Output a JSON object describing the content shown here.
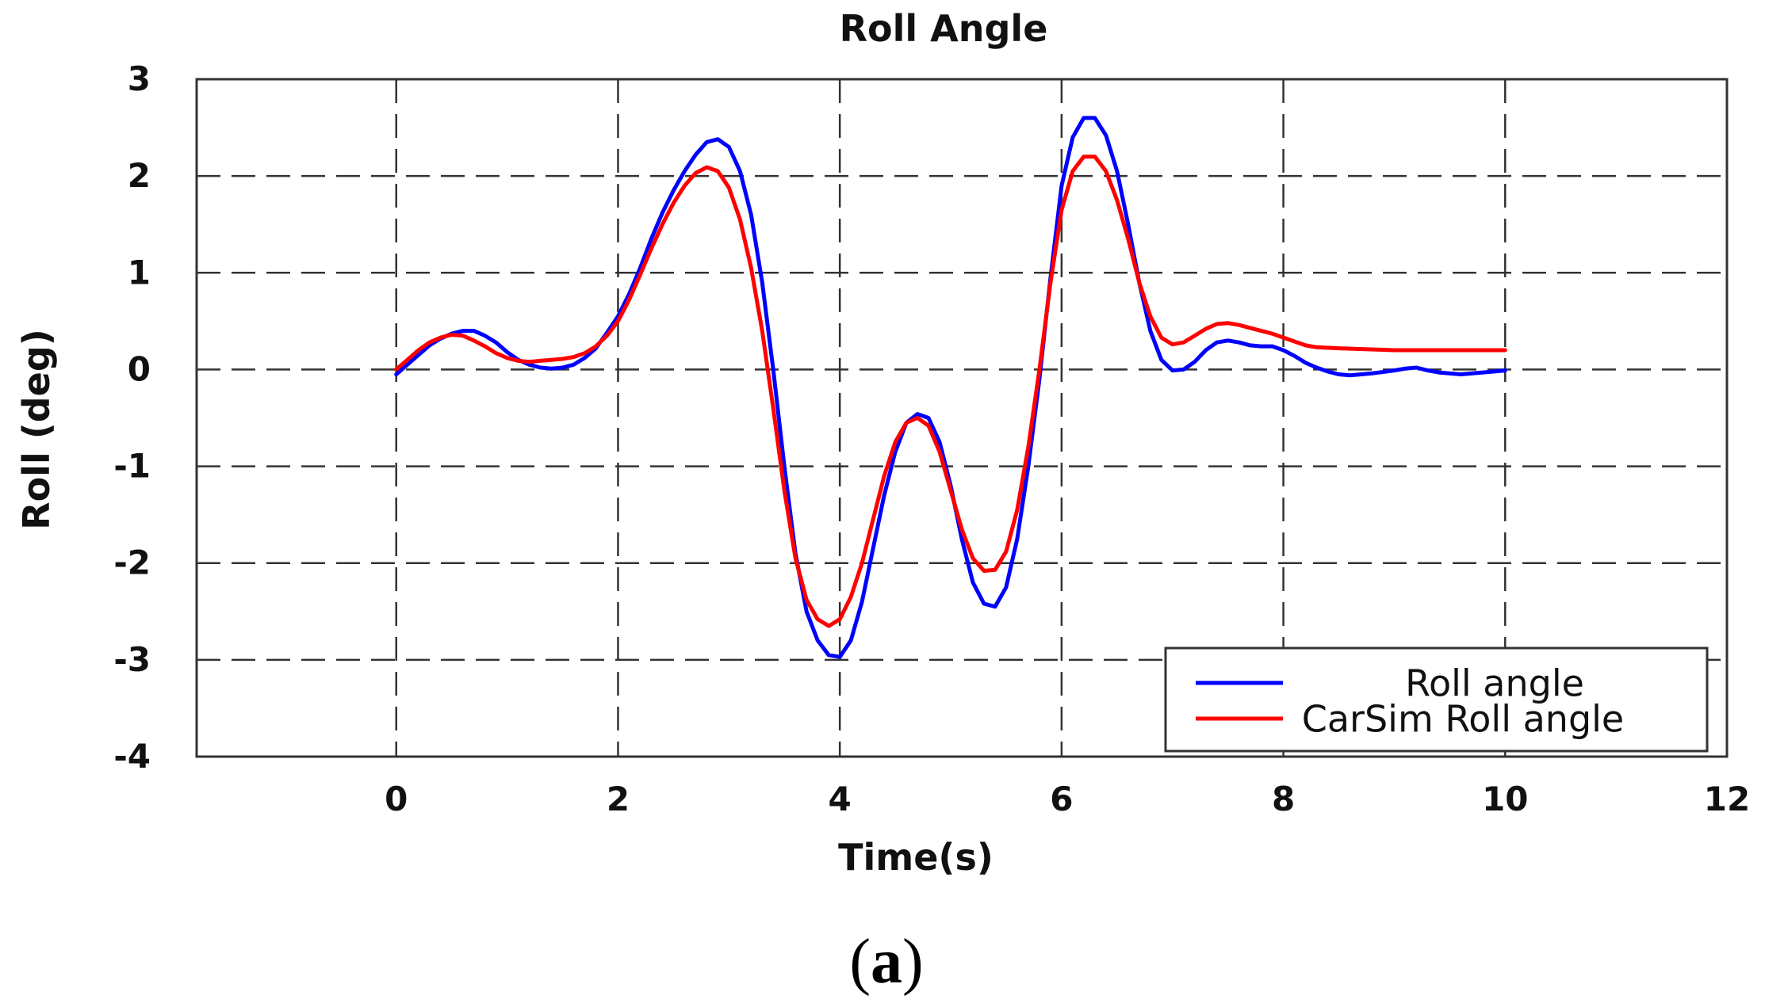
{
  "chart_data": {
    "type": "line",
    "title": "Roll Angle",
    "xlabel": "Time(s)",
    "ylabel": "Roll (deg)",
    "xlim": [
      -1.8,
      12
    ],
    "ylim": [
      -4,
      3
    ],
    "xticks": [
      0,
      2,
      4,
      6,
      8,
      10,
      12
    ],
    "yticks": [
      3,
      2,
      1,
      0,
      -1,
      -2,
      -3,
      -4
    ],
    "grid": true,
    "legend_position": "bottom-right",
    "caption": {
      "open": "(",
      "letter": "a",
      "close": ")"
    },
    "series": [
      {
        "name": "Roll angle",
        "color": "#0000ff",
        "points": [
          [
            0,
            -0.05
          ],
          [
            0.1,
            0.05
          ],
          [
            0.2,
            0.15
          ],
          [
            0.3,
            0.25
          ],
          [
            0.4,
            0.32
          ],
          [
            0.5,
            0.37
          ],
          [
            0.6,
            0.4
          ],
          [
            0.7,
            0.4
          ],
          [
            0.8,
            0.35
          ],
          [
            0.9,
            0.28
          ],
          [
            1.0,
            0.18
          ],
          [
            1.1,
            0.1
          ],
          [
            1.2,
            0.05
          ],
          [
            1.3,
            0.02
          ],
          [
            1.4,
            0.01
          ],
          [
            1.5,
            0.02
          ],
          [
            1.6,
            0.05
          ],
          [
            1.7,
            0.12
          ],
          [
            1.8,
            0.22
          ],
          [
            1.9,
            0.38
          ],
          [
            2.0,
            0.55
          ],
          [
            2.1,
            0.78
          ],
          [
            2.2,
            1.05
          ],
          [
            2.3,
            1.35
          ],
          [
            2.4,
            1.62
          ],
          [
            2.5,
            1.85
          ],
          [
            2.6,
            2.05
          ],
          [
            2.7,
            2.22
          ],
          [
            2.8,
            2.35
          ],
          [
            2.9,
            2.38
          ],
          [
            3.0,
            2.3
          ],
          [
            3.1,
            2.05
          ],
          [
            3.2,
            1.6
          ],
          [
            3.3,
            0.9
          ],
          [
            3.4,
            0.0
          ],
          [
            3.5,
            -1.0
          ],
          [
            3.6,
            -1.9
          ],
          [
            3.7,
            -2.5
          ],
          [
            3.8,
            -2.8
          ],
          [
            3.9,
            -2.95
          ],
          [
            4.0,
            -2.97
          ],
          [
            4.1,
            -2.8
          ],
          [
            4.2,
            -2.4
          ],
          [
            4.3,
            -1.85
          ],
          [
            4.4,
            -1.3
          ],
          [
            4.5,
            -0.85
          ],
          [
            4.6,
            -0.55
          ],
          [
            4.7,
            -0.46
          ],
          [
            4.8,
            -0.5
          ],
          [
            4.9,
            -0.75
          ],
          [
            5.0,
            -1.2
          ],
          [
            5.1,
            -1.75
          ],
          [
            5.2,
            -2.2
          ],
          [
            5.3,
            -2.42
          ],
          [
            5.4,
            -2.45
          ],
          [
            5.5,
            -2.25
          ],
          [
            5.6,
            -1.75
          ],
          [
            5.7,
            -1.0
          ],
          [
            5.8,
            -0.1
          ],
          [
            5.9,
            0.95
          ],
          [
            6.0,
            1.9
          ],
          [
            6.1,
            2.4
          ],
          [
            6.2,
            2.6
          ],
          [
            6.3,
            2.6
          ],
          [
            6.4,
            2.42
          ],
          [
            6.5,
            2.05
          ],
          [
            6.6,
            1.5
          ],
          [
            6.7,
            0.9
          ],
          [
            6.8,
            0.4
          ],
          [
            6.9,
            0.1
          ],
          [
            7.0,
            -0.01
          ],
          [
            7.1,
            0.0
          ],
          [
            7.2,
            0.08
          ],
          [
            7.3,
            0.2
          ],
          [
            7.4,
            0.28
          ],
          [
            7.5,
            0.3
          ],
          [
            7.6,
            0.28
          ],
          [
            7.7,
            0.25
          ],
          [
            7.8,
            0.24
          ],
          [
            7.9,
            0.24
          ],
          [
            8.0,
            0.2
          ],
          [
            8.1,
            0.14
          ],
          [
            8.2,
            0.07
          ],
          [
            8.3,
            0.02
          ],
          [
            8.4,
            -0.02
          ],
          [
            8.5,
            -0.05
          ],
          [
            8.6,
            -0.06
          ],
          [
            8.8,
            -0.04
          ],
          [
            9.0,
            -0.01
          ],
          [
            9.1,
            0.01
          ],
          [
            9.2,
            0.02
          ],
          [
            9.3,
            -0.01
          ],
          [
            9.4,
            -0.03
          ],
          [
            9.6,
            -0.05
          ],
          [
            9.8,
            -0.03
          ],
          [
            10.0,
            -0.01
          ]
        ]
      },
      {
        "name": "CarSim Roll angle",
        "color": "#ff0000",
        "points": [
          [
            0,
            0.0
          ],
          [
            0.1,
            0.1
          ],
          [
            0.2,
            0.2
          ],
          [
            0.3,
            0.28
          ],
          [
            0.4,
            0.33
          ],
          [
            0.5,
            0.36
          ],
          [
            0.6,
            0.35
          ],
          [
            0.7,
            0.3
          ],
          [
            0.8,
            0.24
          ],
          [
            0.9,
            0.17
          ],
          [
            1.0,
            0.12
          ],
          [
            1.1,
            0.09
          ],
          [
            1.2,
            0.08
          ],
          [
            1.3,
            0.09
          ],
          [
            1.4,
            0.1
          ],
          [
            1.5,
            0.11
          ],
          [
            1.6,
            0.13
          ],
          [
            1.7,
            0.17
          ],
          [
            1.8,
            0.24
          ],
          [
            1.9,
            0.35
          ],
          [
            2.0,
            0.5
          ],
          [
            2.1,
            0.72
          ],
          [
            2.2,
            0.98
          ],
          [
            2.3,
            1.25
          ],
          [
            2.4,
            1.5
          ],
          [
            2.5,
            1.72
          ],
          [
            2.6,
            1.9
          ],
          [
            2.7,
            2.03
          ],
          [
            2.8,
            2.09
          ],
          [
            2.9,
            2.05
          ],
          [
            3.0,
            1.88
          ],
          [
            3.1,
            1.55
          ],
          [
            3.2,
            1.05
          ],
          [
            3.3,
            0.4
          ],
          [
            3.4,
            -0.4
          ],
          [
            3.5,
            -1.25
          ],
          [
            3.6,
            -1.95
          ],
          [
            3.7,
            -2.38
          ],
          [
            3.8,
            -2.58
          ],
          [
            3.9,
            -2.65
          ],
          [
            4.0,
            -2.58
          ],
          [
            4.1,
            -2.35
          ],
          [
            4.2,
            -2.0
          ],
          [
            4.3,
            -1.55
          ],
          [
            4.4,
            -1.1
          ],
          [
            4.5,
            -0.75
          ],
          [
            4.6,
            -0.55
          ],
          [
            4.7,
            -0.5
          ],
          [
            4.8,
            -0.58
          ],
          [
            4.9,
            -0.85
          ],
          [
            5.0,
            -1.25
          ],
          [
            5.1,
            -1.65
          ],
          [
            5.2,
            -1.95
          ],
          [
            5.3,
            -2.08
          ],
          [
            5.4,
            -2.07
          ],
          [
            5.5,
            -1.88
          ],
          [
            5.6,
            -1.45
          ],
          [
            5.7,
            -0.8
          ],
          [
            5.8,
            0.0
          ],
          [
            5.9,
            0.9
          ],
          [
            6.0,
            1.65
          ],
          [
            6.1,
            2.05
          ],
          [
            6.2,
            2.2
          ],
          [
            6.3,
            2.2
          ],
          [
            6.4,
            2.05
          ],
          [
            6.5,
            1.75
          ],
          [
            6.6,
            1.35
          ],
          [
            6.7,
            0.9
          ],
          [
            6.8,
            0.55
          ],
          [
            6.9,
            0.33
          ],
          [
            7.0,
            0.26
          ],
          [
            7.1,
            0.28
          ],
          [
            7.2,
            0.35
          ],
          [
            7.3,
            0.42
          ],
          [
            7.4,
            0.47
          ],
          [
            7.5,
            0.48
          ],
          [
            7.6,
            0.46
          ],
          [
            7.7,
            0.43
          ],
          [
            7.8,
            0.4
          ],
          [
            7.9,
            0.37
          ],
          [
            8.0,
            0.33
          ],
          [
            8.1,
            0.29
          ],
          [
            8.2,
            0.25
          ],
          [
            8.3,
            0.23
          ],
          [
            8.5,
            0.22
          ],
          [
            9.0,
            0.2
          ],
          [
            9.5,
            0.2
          ],
          [
            10.0,
            0.2
          ]
        ]
      }
    ]
  }
}
